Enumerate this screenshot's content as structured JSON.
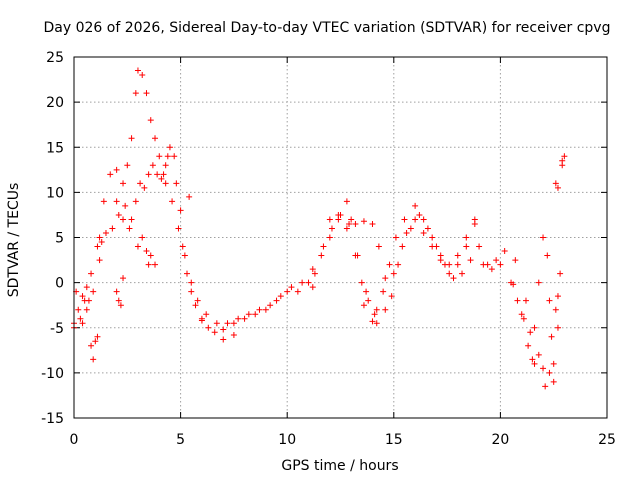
{
  "chart_data": {
    "type": "scatter",
    "title": "Day 026 of 2026, Sidereal Day-to-day VTEC variation (SDTVAR) for receiver cpvg",
    "xlabel": "GPS time / hours",
    "ylabel": "SDTVAR / TECUs",
    "xlim": [
      0,
      25
    ],
    "ylim": [
      -15,
      25
    ],
    "xticks": [
      0,
      5,
      10,
      15,
      20,
      25
    ],
    "yticks": [
      -15,
      -10,
      -5,
      0,
      5,
      10,
      15,
      20,
      25
    ],
    "grid": true,
    "marker": "+",
    "color": "#ff0000",
    "series": [
      {
        "name": "main-trace",
        "points": [
          [
            0.0,
            -4.5
          ],
          [
            0.3,
            -4.0
          ],
          [
            0.5,
            -2.0
          ],
          [
            0.8,
            1.0
          ],
          [
            1.1,
            4.0
          ],
          [
            1.4,
            9.0
          ],
          [
            1.7,
            12.0
          ],
          [
            2.0,
            12.5
          ],
          [
            2.3,
            11.0
          ],
          [
            2.5,
            13.0
          ],
          [
            2.7,
            16.0
          ],
          [
            2.9,
            21.0
          ],
          [
            3.0,
            23.5
          ],
          [
            3.2,
            23.0
          ],
          [
            3.4,
            21.0
          ],
          [
            3.6,
            18.0
          ],
          [
            3.8,
            16.0
          ],
          [
            4.0,
            14.0
          ],
          [
            4.3,
            13.0
          ],
          [
            4.5,
            15.0
          ],
          [
            4.7,
            14.0
          ],
          [
            4.8,
            11.0
          ],
          [
            5.0,
            8.0
          ],
          [
            5.1,
            4.0
          ],
          [
            5.3,
            1.0
          ],
          [
            5.5,
            -1.0
          ],
          [
            5.7,
            -2.5
          ],
          [
            6.0,
            -4.0
          ],
          [
            6.3,
            -5.0
          ],
          [
            6.6,
            -5.5
          ],
          [
            7.0,
            -5.2
          ],
          [
            7.5,
            -4.5
          ],
          [
            8.0,
            -4.0
          ],
          [
            8.5,
            -3.5
          ],
          [
            9.0,
            -3.0
          ],
          [
            9.5,
            -2.0
          ],
          [
            10.0,
            -1.0
          ],
          [
            10.5,
            -1.0
          ],
          [
            11.0,
            0.0
          ],
          [
            11.3,
            1.0
          ],
          [
            11.6,
            3.0
          ],
          [
            12.0,
            5.0
          ],
          [
            12.4,
            7.0
          ],
          [
            12.8,
            9.0
          ],
          [
            13.0,
            7.0
          ],
          [
            13.2,
            3.0
          ],
          [
            13.5,
            0.0
          ],
          [
            13.8,
            -2.0
          ],
          [
            14.2,
            -3.0
          ],
          [
            14.5,
            -1.0
          ],
          [
            14.8,
            2.0
          ],
          [
            15.1,
            5.0
          ],
          [
            15.5,
            7.0
          ],
          [
            16.0,
            8.5
          ],
          [
            16.4,
            7.0
          ],
          [
            16.8,
            5.0
          ],
          [
            17.2,
            3.0
          ],
          [
            17.6,
            1.0
          ],
          [
            18.0,
            2.0
          ],
          [
            18.4,
            4.0
          ],
          [
            18.8,
            6.5
          ],
          [
            19.0,
            4.0
          ],
          [
            19.4,
            2.0
          ],
          [
            19.8,
            2.5
          ],
          [
            20.2,
            3.5
          ],
          [
            20.5,
            0.0
          ],
          [
            20.8,
            -2.0
          ],
          [
            21.1,
            -4.0
          ],
          [
            21.3,
            -7.0
          ],
          [
            21.5,
            -8.5
          ],
          [
            21.6,
            -5.0
          ],
          [
            21.8,
            0.0
          ],
          [
            22.0,
            5.0
          ],
          [
            22.2,
            3.0
          ],
          [
            22.3,
            -2.0
          ],
          [
            22.4,
            -6.0
          ],
          [
            22.5,
            -11.0
          ],
          [
            22.7,
            -5.0
          ],
          [
            22.8,
            1.0
          ]
        ]
      },
      {
        "name": "secondary-trace",
        "points": [
          [
            2.0,
            9.0
          ],
          [
            2.3,
            7.0
          ],
          [
            2.6,
            6.0
          ],
          [
            2.9,
            9.0
          ],
          [
            3.1,
            11.0
          ],
          [
            3.3,
            10.5
          ],
          [
            3.5,
            12.0
          ],
          [
            3.7,
            13.0
          ],
          [
            3.9,
            12.0
          ],
          [
            4.1,
            11.5
          ],
          [
            4.3,
            11.0
          ],
          [
            4.6,
            9.0
          ],
          [
            4.9,
            6.0
          ],
          [
            5.2,
            3.0
          ],
          [
            5.5,
            0.0
          ],
          [
            5.8,
            -2.0
          ],
          [
            6.2,
            -3.5
          ],
          [
            6.7,
            -4.5
          ],
          [
            7.2,
            -4.5
          ],
          [
            7.7,
            -4.0
          ],
          [
            8.2,
            -3.5
          ],
          [
            8.7,
            -3.0
          ],
          [
            9.2,
            -2.5
          ],
          [
            9.7,
            -1.5
          ],
          [
            10.2,
            -0.5
          ],
          [
            10.7,
            0.0
          ],
          [
            11.2,
            1.5
          ],
          [
            11.7,
            4.0
          ],
          [
            12.1,
            6.0
          ],
          [
            12.5,
            7.5
          ],
          [
            12.9,
            6.5
          ],
          [
            13.3,
            3.0
          ],
          [
            13.7,
            -1.0
          ],
          [
            14.1,
            -3.5
          ],
          [
            14.6,
            -3.0
          ],
          [
            15.0,
            1.0
          ],
          [
            15.4,
            4.0
          ],
          [
            15.8,
            6.0
          ],
          [
            16.2,
            7.5
          ],
          [
            16.6,
            6.0
          ],
          [
            17.0,
            4.0
          ],
          [
            17.4,
            2.0
          ],
          [
            17.8,
            0.5
          ],
          [
            18.2,
            1.0
          ],
          [
            18.6,
            2.5
          ],
          [
            19.2,
            2.0
          ],
          [
            19.6,
            1.5
          ],
          [
            20.0,
            2.0
          ]
        ]
      },
      {
        "name": "tertiary-trace",
        "points": [
          [
            12.0,
            7.0
          ],
          [
            12.4,
            7.5
          ],
          [
            12.8,
            6.0
          ],
          [
            13.2,
            6.5
          ],
          [
            13.6,
            6.8
          ],
          [
            14.0,
            6.5
          ],
          [
            14.3,
            4.0
          ],
          [
            14.6,
            0.5
          ],
          [
            14.9,
            -1.5
          ],
          [
            15.2,
            2.0
          ],
          [
            15.6,
            5.5
          ],
          [
            16.0,
            7.0
          ],
          [
            16.4,
            5.5
          ],
          [
            16.8,
            4.0
          ],
          [
            17.2,
            2.5
          ],
          [
            17.6,
            2.0
          ],
          [
            18.0,
            3.0
          ],
          [
            18.4,
            5.0
          ],
          [
            18.8,
            7.0
          ]
        ]
      },
      {
        "name": "fourth-trace",
        "points": [
          [
            0.0,
            -5.0
          ],
          [
            0.4,
            -4.5
          ],
          [
            0.6,
            -3.0
          ],
          [
            0.9,
            -1.0
          ],
          [
            1.2,
            2.5
          ],
          [
            1.5,
            5.5
          ],
          [
            1.8,
            6.0
          ],
          [
            2.1,
            7.5
          ],
          [
            2.4,
            8.5
          ],
          [
            2.7,
            7.0
          ],
          [
            3.0,
            4.0
          ],
          [
            3.2,
            5.0
          ],
          [
            3.4,
            3.5
          ],
          [
            3.6,
            3.0
          ],
          [
            3.8,
            2.0
          ]
        ]
      },
      {
        "name": "scatter-points",
        "points": [
          [
            0.1,
            -1.0
          ],
          [
            0.2,
            -3.0
          ],
          [
            0.4,
            -1.5
          ],
          [
            0.6,
            -0.5
          ],
          [
            0.7,
            -2.0
          ],
          [
            0.8,
            -7.0
          ],
          [
            0.9,
            -8.5
          ],
          [
            1.0,
            -6.5
          ],
          [
            1.1,
            -6.0
          ],
          [
            1.2,
            5.0
          ],
          [
            1.3,
            4.5
          ],
          [
            2.0,
            -1.0
          ],
          [
            2.1,
            -2.0
          ],
          [
            2.2,
            -2.5
          ],
          [
            2.3,
            0.5
          ],
          [
            3.5,
            2.0
          ],
          [
            4.2,
            12.0
          ],
          [
            4.4,
            14.0
          ],
          [
            5.4,
            9.5
          ],
          [
            6.0,
            -4.2
          ],
          [
            7.0,
            -6.3
          ],
          [
            7.5,
            -5.8
          ],
          [
            11.2,
            -0.5
          ],
          [
            13.6,
            -2.5
          ],
          [
            14.0,
            -4.3
          ],
          [
            14.2,
            -4.5
          ],
          [
            20.6,
            -0.2
          ],
          [
            20.7,
            2.5
          ],
          [
            21.0,
            -3.5
          ],
          [
            21.2,
            -2.0
          ],
          [
            21.4,
            -5.5
          ],
          [
            21.6,
            -9.0
          ],
          [
            21.8,
            -8.0
          ],
          [
            22.0,
            -9.5
          ],
          [
            22.1,
            -11.5
          ],
          [
            22.3,
            -10.0
          ],
          [
            22.5,
            -9.0
          ],
          [
            22.6,
            -3.0
          ],
          [
            22.7,
            -1.5
          ],
          [
            22.6,
            11.0
          ],
          [
            22.7,
            10.5
          ],
          [
            22.9,
            13.5
          ],
          [
            23.0,
            14.0
          ],
          [
            22.9,
            13.0
          ]
        ]
      }
    ]
  }
}
